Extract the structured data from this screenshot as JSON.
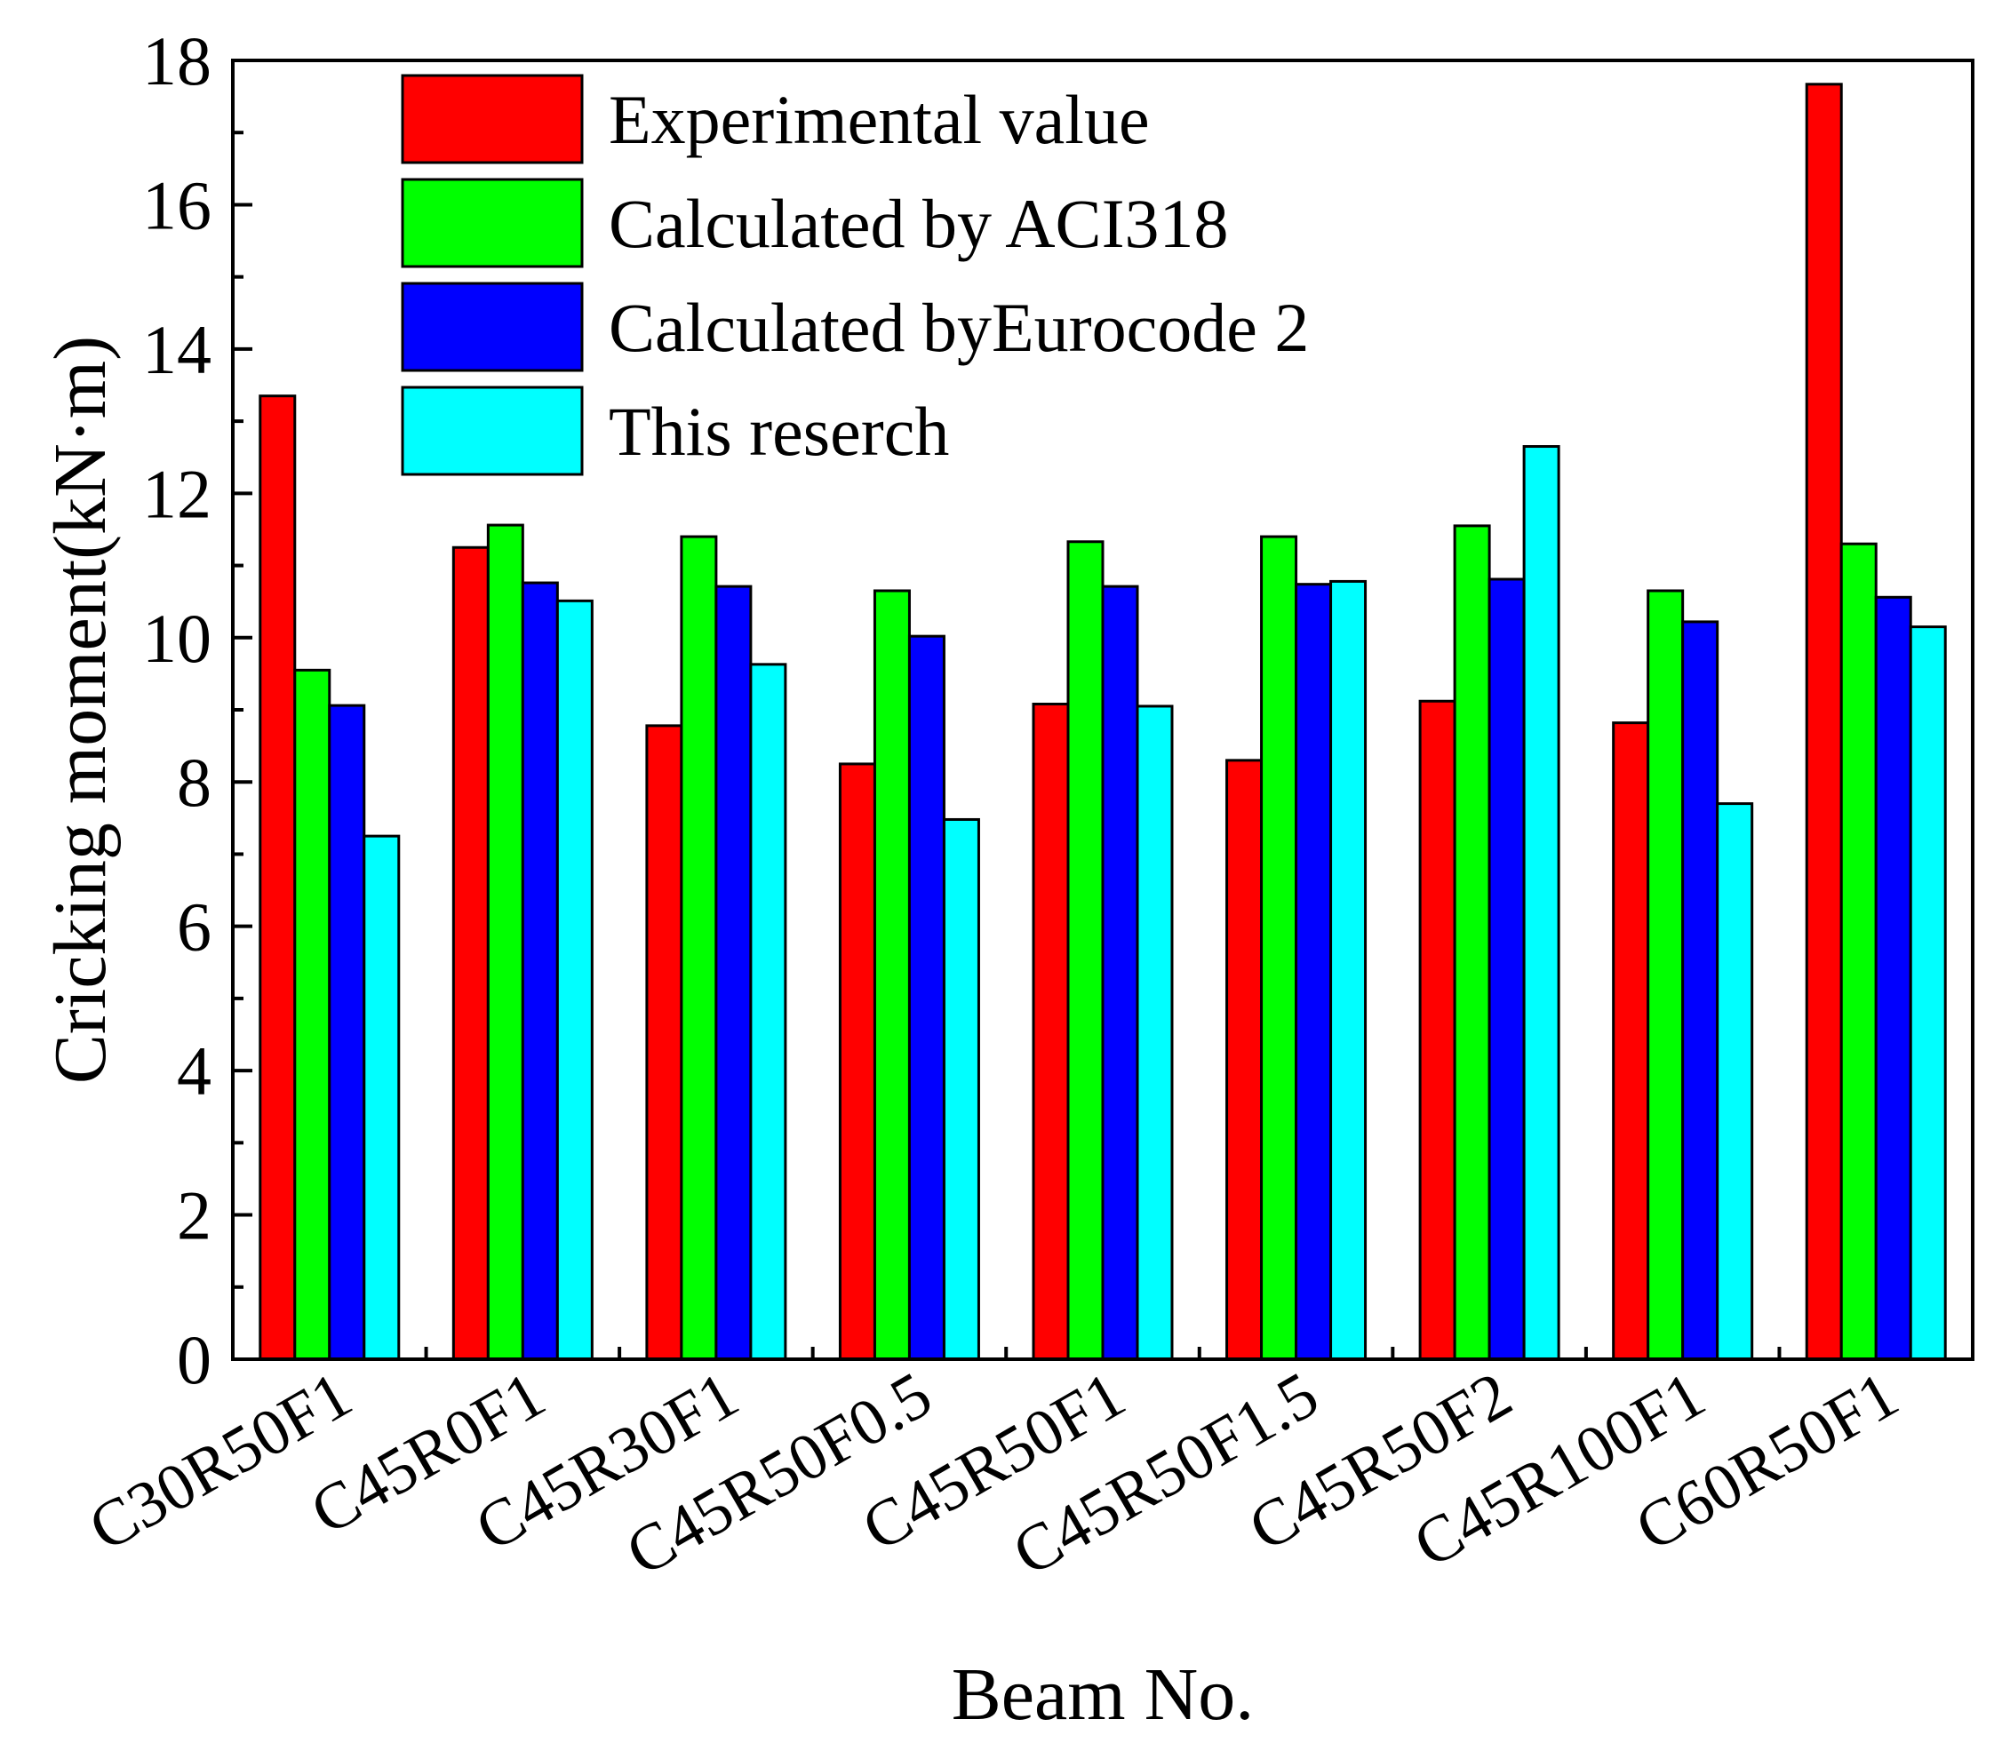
{
  "chart_data": {
    "type": "bar",
    "title": "",
    "xlabel": "Beam No.",
    "ylabel": "Cricking moment(kN·m)",
    "ylim": [
      0,
      18
    ],
    "yticks": [
      "0",
      "2",
      "4",
      "6",
      "8",
      "10",
      "12",
      "14",
      "16",
      "18"
    ],
    "grid": false,
    "legend_position": "top-center",
    "categories": [
      "C30R50F1",
      "C45R0F1",
      "C45R30F1",
      "C45R50F0.5",
      "C45R50F1",
      "C45R50F1.5",
      "C45R50F2",
      "C45R100F1",
      "C60R50F1"
    ],
    "series": [
      {
        "name": "Experimental value",
        "color": "#ff0000",
        "values": [
          13.35,
          11.25,
          8.78,
          8.25,
          9.08,
          8.3,
          9.12,
          8.82,
          17.67
        ]
      },
      {
        "name": "Calculated by ACI318",
        "color": "#00ff00",
        "values": [
          9.55,
          11.56,
          11.4,
          10.65,
          11.33,
          11.4,
          11.55,
          10.65,
          11.3
        ]
      },
      {
        "name": "Calculated byEurocode 2",
        "color": "#0000ff",
        "values": [
          9.06,
          10.76,
          10.71,
          10.02,
          10.71,
          10.74,
          10.81,
          10.22,
          10.56
        ]
      },
      {
        "name": "This reserch",
        "color": "#00ffff",
        "values": [
          7.25,
          10.51,
          9.63,
          7.48,
          9.05,
          10.78,
          12.65,
          7.7,
          10.15
        ]
      }
    ]
  }
}
